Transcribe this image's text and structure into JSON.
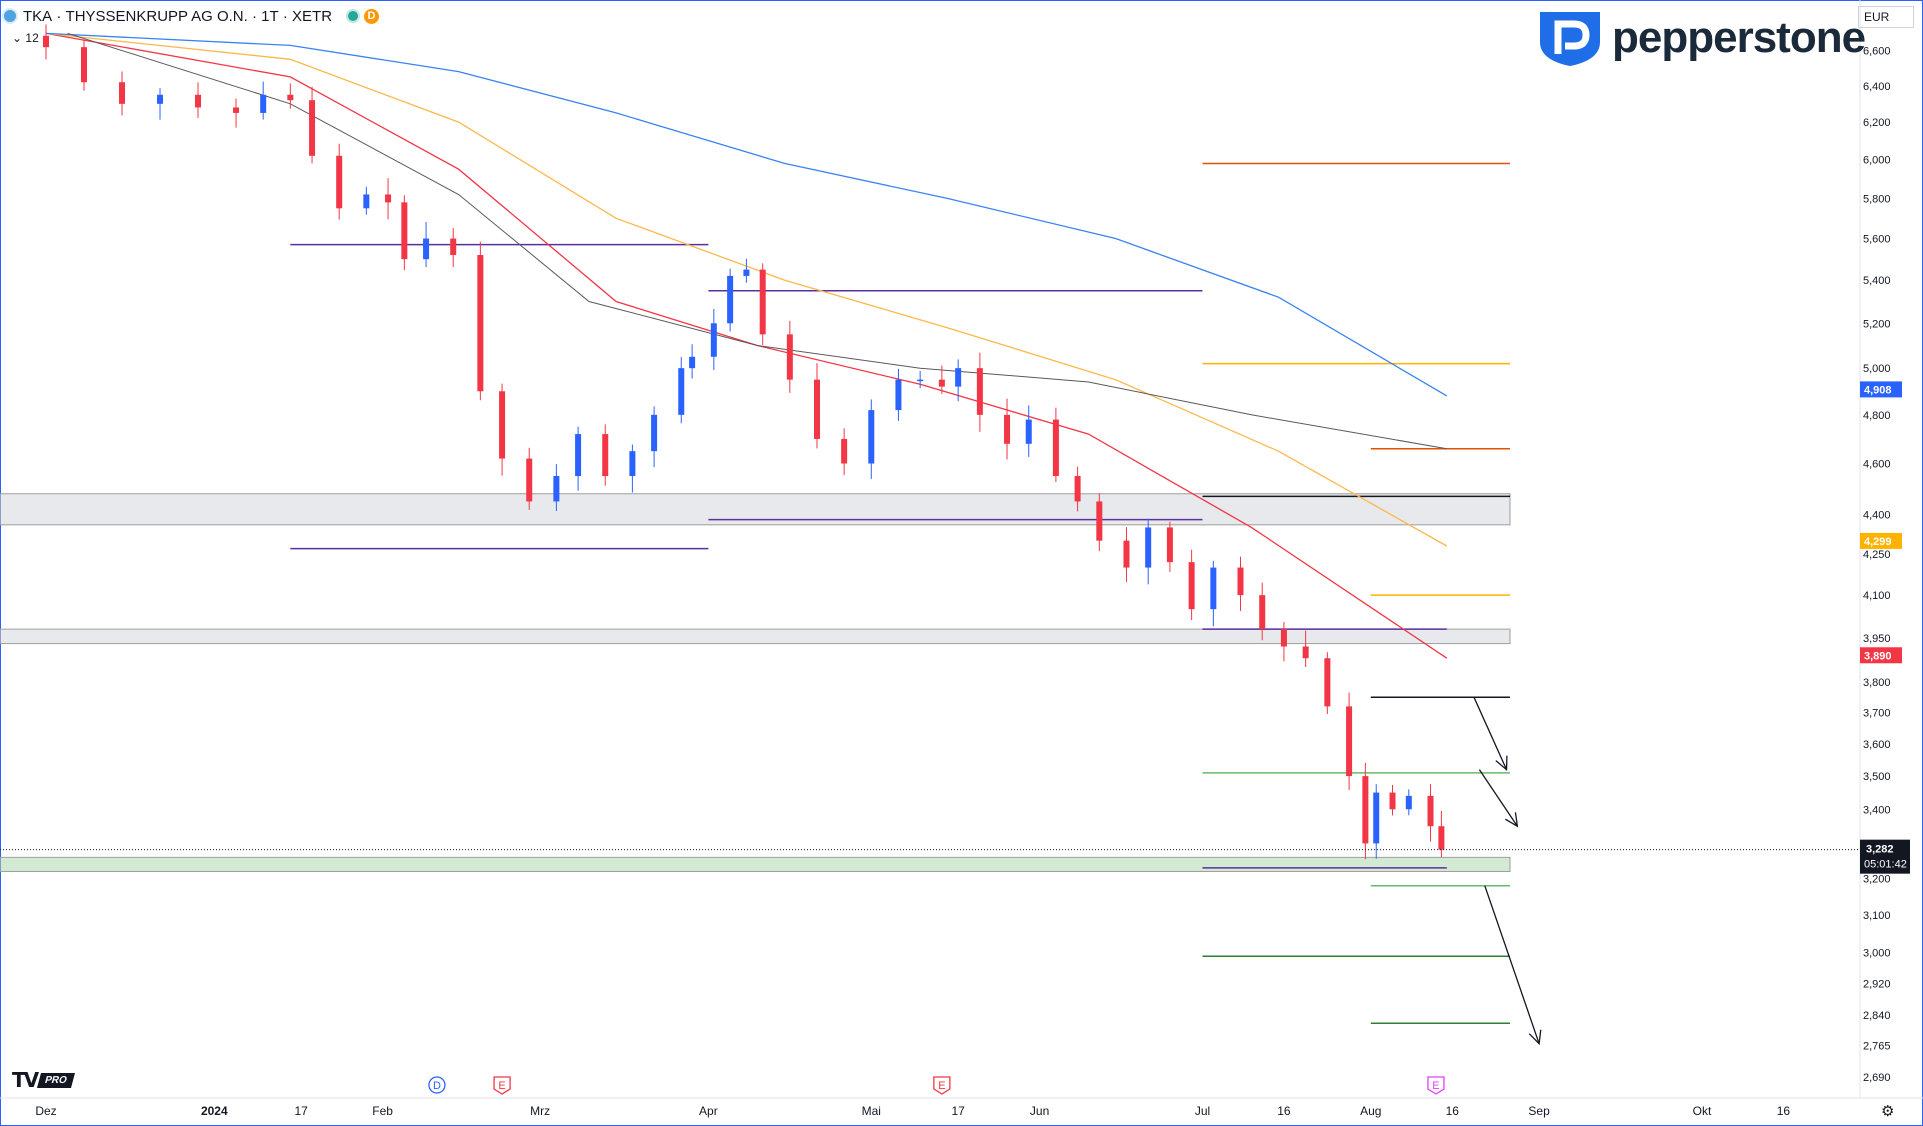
{
  "header": {
    "symbol": "TKA",
    "company": "THYSSENKRUPP AG O.N.",
    "interval": "1T",
    "exchange": "XETR",
    "badge": "D",
    "indicator_collapse": "12"
  },
  "brand": {
    "name": "pepperstone",
    "color": "#1f6ee8"
  },
  "currency": "EUR",
  "platform": {
    "logo": "TV",
    "plan": "PRO"
  },
  "colors": {
    "up": "#2962ff",
    "down": "#f23645",
    "ema_red": "#f23645",
    "ema_orange": "#ffb74d",
    "ema_blue": "#3a83f1",
    "vwap_gray": "#595959",
    "purple": "#5b2f9b",
    "target_orange": "#e65100",
    "target_green": "#2e7d32",
    "current_price": "#131722"
  },
  "chart_data": {
    "type": "candlestick",
    "title": "THYSSENKRUPP AG O.N. · 1T · XETR",
    "ylabel": "EUR",
    "ylim": [
      2.66,
      6.72
    ],
    "y_scale": "log",
    "grid": false,
    "y_ticks": [
      "6,600",
      "6,400",
      "6,200",
      "6,000",
      "5,800",
      "5,600",
      "5,400",
      "5,200",
      "5,000",
      "4,800",
      "4,600",
      "4,400",
      "4,250",
      "4,100",
      "3,950",
      "3,800",
      "3,700",
      "3,600",
      "3,500",
      "3,400",
      "3,300",
      "3,200",
      "3,100",
      "3,000",
      "2,920",
      "2,840",
      "2,765",
      "2,690"
    ],
    "x_labels": [
      {
        "label": "Dez",
        "date": "2023-12-01",
        "bold": false
      },
      {
        "label": "2024",
        "date": "2024-01-01",
        "bold": true
      },
      {
        "label": "17",
        "date": "2024-01-17",
        "bold": false
      },
      {
        "label": "Feb",
        "date": "2024-02-01",
        "bold": false
      },
      {
        "label": "Mrz",
        "date": "2024-03-01",
        "bold": false
      },
      {
        "label": "Apr",
        "date": "2024-04-01",
        "bold": false
      },
      {
        "label": "Mai",
        "date": "2024-05-01",
        "bold": false
      },
      {
        "label": "17",
        "date": "2024-05-17",
        "bold": false
      },
      {
        "label": "Jun",
        "date": "2024-06-01",
        "bold": false
      },
      {
        "label": "Jul",
        "date": "2024-07-01",
        "bold": false
      },
      {
        "label": "16",
        "date": "2024-07-16",
        "bold": false
      },
      {
        "label": "Aug",
        "date": "2024-08-01",
        "bold": false
      },
      {
        "label": "16",
        "date": "2024-08-16",
        "bold": false
      },
      {
        "label": "Sep",
        "date": "2024-09-01",
        "bold": false
      },
      {
        "label": "Okt",
        "date": "2024-10-01",
        "bold": false
      },
      {
        "label": "16",
        "date": "2024-10-16",
        "bold": false
      }
    ],
    "price_badges": [
      {
        "value": 4.908,
        "label": "4,908",
        "color": "#2962ff"
      },
      {
        "value": 4.299,
        "label": "4,299",
        "color": "#ffb300"
      },
      {
        "value": 3.89,
        "label": "3,890",
        "color": "#f23645"
      }
    ],
    "current_price": {
      "value": 3.282,
      "label": "3,282",
      "countdown": "05:01:42"
    },
    "close_path": [
      [
        "2023-12-01",
        6.62
      ],
      [
        "2023-12-08",
        6.42
      ],
      [
        "2023-12-15",
        6.3
      ],
      [
        "2023-12-22",
        6.35
      ],
      [
        "2023-12-29",
        6.28
      ],
      [
        "2024-01-05",
        6.25
      ],
      [
        "2024-01-10",
        6.35
      ],
      [
        "2024-01-15",
        6.32
      ],
      [
        "2024-01-19",
        6.02
      ],
      [
        "2024-01-24",
        5.75
      ],
      [
        "2024-01-29",
        5.82
      ],
      [
        "2024-02-02",
        5.78
      ],
      [
        "2024-02-05",
        5.5
      ],
      [
        "2024-02-09",
        5.6
      ],
      [
        "2024-02-14",
        5.52
      ],
      [
        "2024-02-19",
        4.9
      ],
      [
        "2024-02-23",
        4.62
      ],
      [
        "2024-02-28",
        4.45
      ],
      [
        "2024-03-04",
        4.55
      ],
      [
        "2024-03-08",
        4.72
      ],
      [
        "2024-03-13",
        4.55
      ],
      [
        "2024-03-18",
        4.65
      ],
      [
        "2024-03-22",
        4.8
      ],
      [
        "2024-03-27",
        5.0
      ],
      [
        "2024-03-29",
        5.05
      ],
      [
        "2024-04-02",
        5.2
      ],
      [
        "2024-04-05",
        5.42
      ],
      [
        "2024-04-08",
        5.45
      ],
      [
        "2024-04-11",
        5.15
      ],
      [
        "2024-04-16",
        4.95
      ],
      [
        "2024-04-21",
        4.7
      ],
      [
        "2024-04-26",
        4.6
      ],
      [
        "2024-05-01",
        4.82
      ],
      [
        "2024-05-06",
        4.95
      ],
      [
        "2024-05-10",
        4.95
      ],
      [
        "2024-05-14",
        4.92
      ],
      [
        "2024-05-17",
        5.0
      ],
      [
        "2024-05-21",
        4.8
      ],
      [
        "2024-05-26",
        4.68
      ],
      [
        "2024-05-30",
        4.78
      ],
      [
        "2024-06-04",
        4.55
      ],
      [
        "2024-06-08",
        4.45
      ],
      [
        "2024-06-12",
        4.3
      ],
      [
        "2024-06-17",
        4.2
      ],
      [
        "2024-06-21",
        4.35
      ],
      [
        "2024-06-25",
        4.22
      ],
      [
        "2024-06-29",
        4.05
      ],
      [
        "2024-07-03",
        4.2
      ],
      [
        "2024-07-08",
        4.1
      ],
      [
        "2024-07-12",
        3.98
      ],
      [
        "2024-07-16",
        3.92
      ],
      [
        "2024-07-20",
        3.88
      ],
      [
        "2024-07-24",
        3.72
      ],
      [
        "2024-07-28",
        3.5
      ],
      [
        "2024-07-31",
        3.3
      ],
      [
        "2024-08-02",
        3.45
      ],
      [
        "2024-08-05",
        3.4
      ],
      [
        "2024-08-08",
        3.44
      ],
      [
        "2024-08-12",
        3.35
      ],
      [
        "2024-08-14",
        3.282
      ]
    ],
    "series": [
      {
        "name": "EMA red",
        "color": "#f23645",
        "points": [
          [
            "2023-12-01",
            6.7
          ],
          [
            "2024-01-15",
            6.45
          ],
          [
            "2024-02-15",
            5.95
          ],
          [
            "2024-03-15",
            5.3
          ],
          [
            "2024-04-10",
            5.1
          ],
          [
            "2024-05-10",
            4.93
          ],
          [
            "2024-06-10",
            4.72
          ],
          [
            "2024-07-10",
            4.35
          ],
          [
            "2024-08-15",
            3.88
          ]
        ]
      },
      {
        "name": "EMA orange",
        "color": "#ffb74d",
        "points": [
          [
            "2023-12-01",
            6.7
          ],
          [
            "2024-01-15",
            6.55
          ],
          [
            "2024-02-15",
            6.2
          ],
          [
            "2024-03-15",
            5.7
          ],
          [
            "2024-04-15",
            5.4
          ],
          [
            "2024-05-15",
            5.18
          ],
          [
            "2024-06-15",
            4.95
          ],
          [
            "2024-07-15",
            4.65
          ],
          [
            "2024-08-15",
            4.28
          ]
        ]
      },
      {
        "name": "EMA blue",
        "color": "#3a83f1",
        "points": [
          [
            "2023-12-01",
            6.7
          ],
          [
            "2024-01-15",
            6.63
          ],
          [
            "2024-02-15",
            6.48
          ],
          [
            "2024-03-15",
            6.25
          ],
          [
            "2024-04-15",
            5.98
          ],
          [
            "2024-05-15",
            5.8
          ],
          [
            "2024-06-15",
            5.6
          ],
          [
            "2024-07-15",
            5.32
          ],
          [
            "2024-08-15",
            4.88
          ]
        ]
      },
      {
        "name": "VWAP",
        "color": "#595959",
        "points": [
          [
            "2023-12-05",
            6.7
          ],
          [
            "2024-01-15",
            6.3
          ],
          [
            "2024-02-15",
            5.82
          ],
          [
            "2024-03-10",
            5.3
          ],
          [
            "2024-04-10",
            5.1
          ],
          [
            "2024-05-10",
            5.0
          ],
          [
            "2024-06-10",
            4.94
          ],
          [
            "2024-07-10",
            4.8
          ],
          [
            "2024-08-15",
            4.66
          ]
        ]
      }
    ],
    "levels": [
      {
        "price": 5.98,
        "from": "2024-07-01",
        "to": "2024-09-30",
        "color": "#e65100"
      },
      {
        "price": 5.02,
        "from": "2024-07-01",
        "to": "2024-09-30",
        "color": "#ffb300"
      },
      {
        "price": 4.66,
        "from": "2024-08-01",
        "to": "2024-08-31",
        "color": "#e65100"
      },
      {
        "price": 4.1,
        "from": "2024-08-01",
        "to": "2024-08-31",
        "color": "#ffb300"
      },
      {
        "price": 3.51,
        "from": "2024-07-01",
        "to": "2024-09-30",
        "color": "#66bb6a"
      },
      {
        "price": 3.18,
        "from": "2024-08-01",
        "to": "2024-08-31",
        "color": "#66bb6a"
      },
      {
        "price": 2.99,
        "from": "2024-07-01",
        "to": "2024-09-30",
        "color": "#2e7d32"
      },
      {
        "price": 2.82,
        "from": "2024-08-01",
        "to": "2024-08-31",
        "color": "#2e7d32"
      },
      {
        "price": 5.57,
        "from": "2024-01-15",
        "to": "2024-04-01",
        "color": "#5b2f9b"
      },
      {
        "price": 4.27,
        "from": "2024-01-15",
        "to": "2024-04-01",
        "color": "#5b2f9b"
      },
      {
        "price": 5.35,
        "from": "2024-04-01",
        "to": "2024-07-01",
        "color": "#5b2f9b"
      },
      {
        "price": 4.38,
        "from": "2024-04-01",
        "to": "2024-07-01",
        "color": "#5b2f9b"
      },
      {
        "price": 3.98,
        "from": "2024-07-01",
        "to": "2024-08-15",
        "color": "#5b2f9b"
      },
      {
        "price": 3.23,
        "from": "2024-07-01",
        "to": "2024-08-15",
        "color": "#5b2f9b"
      },
      {
        "price": 3.75,
        "from": "2024-08-01",
        "to": "2024-08-31",
        "color": "#131722"
      },
      {
        "price": 4.47,
        "from": "2024-07-01",
        "to": "2024-09-30",
        "color": "#131722"
      }
    ],
    "zones": [
      {
        "top": 4.48,
        "bottom": 4.36,
        "color": "#d1d4dc"
      },
      {
        "top": 3.98,
        "bottom": 3.93,
        "color": "#d1d4dc"
      },
      {
        "top": 3.26,
        "bottom": 3.22,
        "color": "#a5d6a7"
      }
    ],
    "arrows": [
      {
        "from": [
          "2024-08-20",
          3.75
        ],
        "to": [
          "2024-08-26",
          3.52
        ]
      },
      {
        "from": [
          "2024-08-21",
          3.52
        ],
        "to": [
          "2024-08-28",
          3.35
        ]
      },
      {
        "from": [
          "2024-08-22",
          3.18
        ],
        "to": [
          "2024-09-01",
          2.77
        ]
      }
    ],
    "events": [
      {
        "label": "D",
        "date": "2024-02-11",
        "color": "#2962ff"
      },
      {
        "label": "E",
        "date": "2024-02-23",
        "color": "#f23645"
      },
      {
        "label": "E",
        "date": "2024-05-14",
        "color": "#f23645"
      },
      {
        "label": "E",
        "date": "2024-08-13",
        "color": "#e040fb"
      }
    ]
  }
}
